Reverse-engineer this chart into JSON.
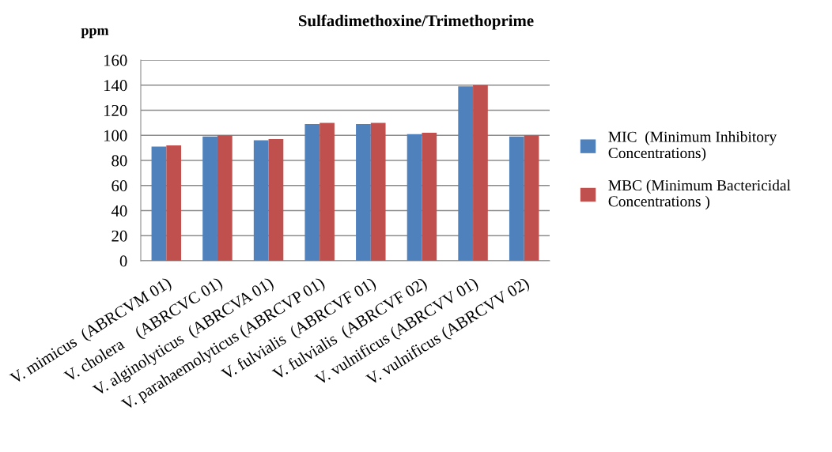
{
  "chart_data": {
    "type": "bar",
    "title": "Sulfadimethoxine/Trimethoprime",
    "ylabel": "ppm",
    "categories": [
      "V. mimicus  (ABRCVM 01)",
      "V. cholera    (ABRCVC 01)",
      "V. alginolyticus  (ABRCVA 01)",
      "V. parahaemolyticus (ABRCVP 01)",
      "V. fulvialis  (ABRCVF 01)",
      "V. fulvialis  (ABRCVF 02)",
      "V. vulnificus (ABRCVV 01)",
      "V. vulnificus (ABRCVV 02)"
    ],
    "series": [
      {
        "name": "MIC  (Minimum Inhibitory\nConcentrations)",
        "color": "#4f81bd",
        "values": [
          91,
          99,
          96,
          109,
          109,
          101,
          139,
          99
        ]
      },
      {
        "name": "MBC (Minimum Bactericidal\nConcentrations )",
        "color": "#c0504d",
        "values": [
          92,
          100,
          97,
          110,
          110,
          102,
          140,
          100
        ]
      }
    ],
    "ylim": [
      0,
      160
    ],
    "yticks": [
      0,
      20,
      40,
      60,
      80,
      100,
      120,
      140,
      160
    ],
    "grid": "y",
    "legend": "right"
  }
}
